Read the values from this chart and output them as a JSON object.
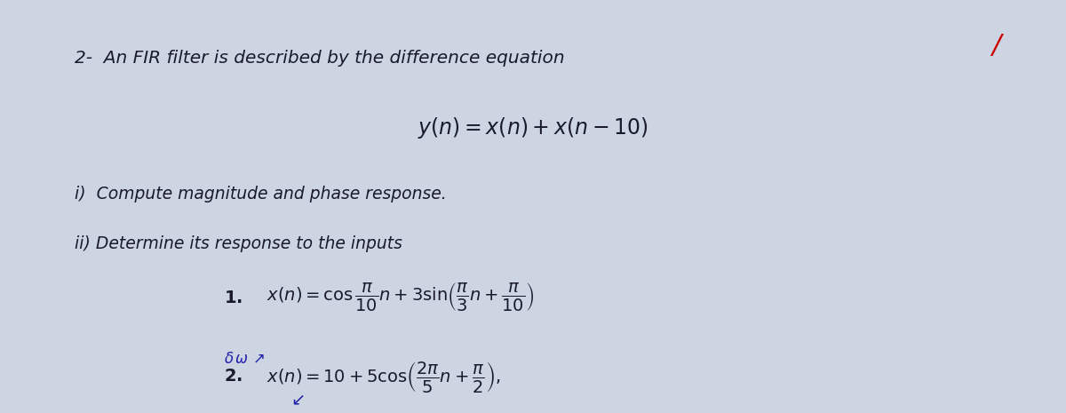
{
  "bg_color": "#cdd5e3",
  "text_color": "#1a1a2e",
  "slash_color": "#cc0000",
  "annotation_color": "#2222aa",
  "title": "2-  An FIR filter is described by the difference equation",
  "eq_main": "y(n) = x(n) + x(n − 10)",
  "item_i": "i)  Compute magnitude and phase response.",
  "item_ii": "ii) Determine its response to the inputs",
  "figsize": [
    12.0,
    4.65
  ],
  "dpi": 100
}
